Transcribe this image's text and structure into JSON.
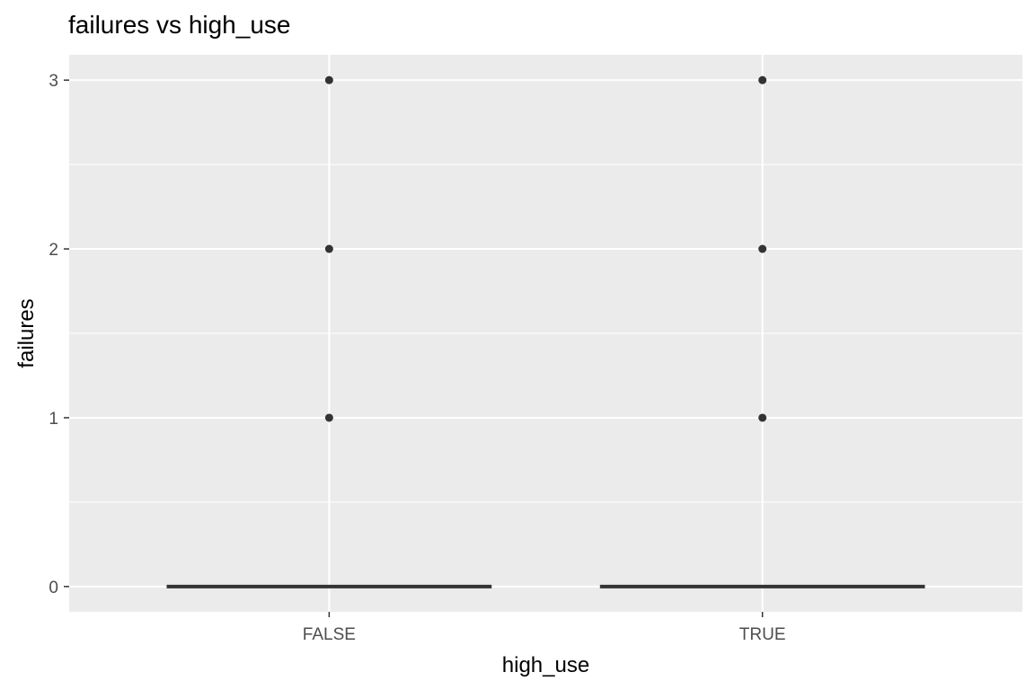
{
  "chart_data": {
    "type": "box",
    "title": "failures vs high_use",
    "xlabel": "high_use",
    "ylabel": "failures",
    "categories": [
      "FALSE",
      "TRUE"
    ],
    "yticks": [
      0,
      1,
      2,
      3
    ],
    "ylim": [
      -0.15,
      3.15
    ],
    "grid": true,
    "panel_background": "#EBEBEB",
    "grid_color": "#FFFFFF",
    "series": [
      {
        "category": "FALSE",
        "min": 0,
        "q1": 0,
        "median": 0,
        "q3": 0,
        "max": 0,
        "outliers": [
          1,
          2,
          3
        ]
      },
      {
        "category": "TRUE",
        "min": 0,
        "q1": 0,
        "median": 0,
        "q3": 0,
        "max": 0,
        "outliers": [
          1,
          2,
          3
        ]
      }
    ],
    "mark_color": "#333333"
  }
}
